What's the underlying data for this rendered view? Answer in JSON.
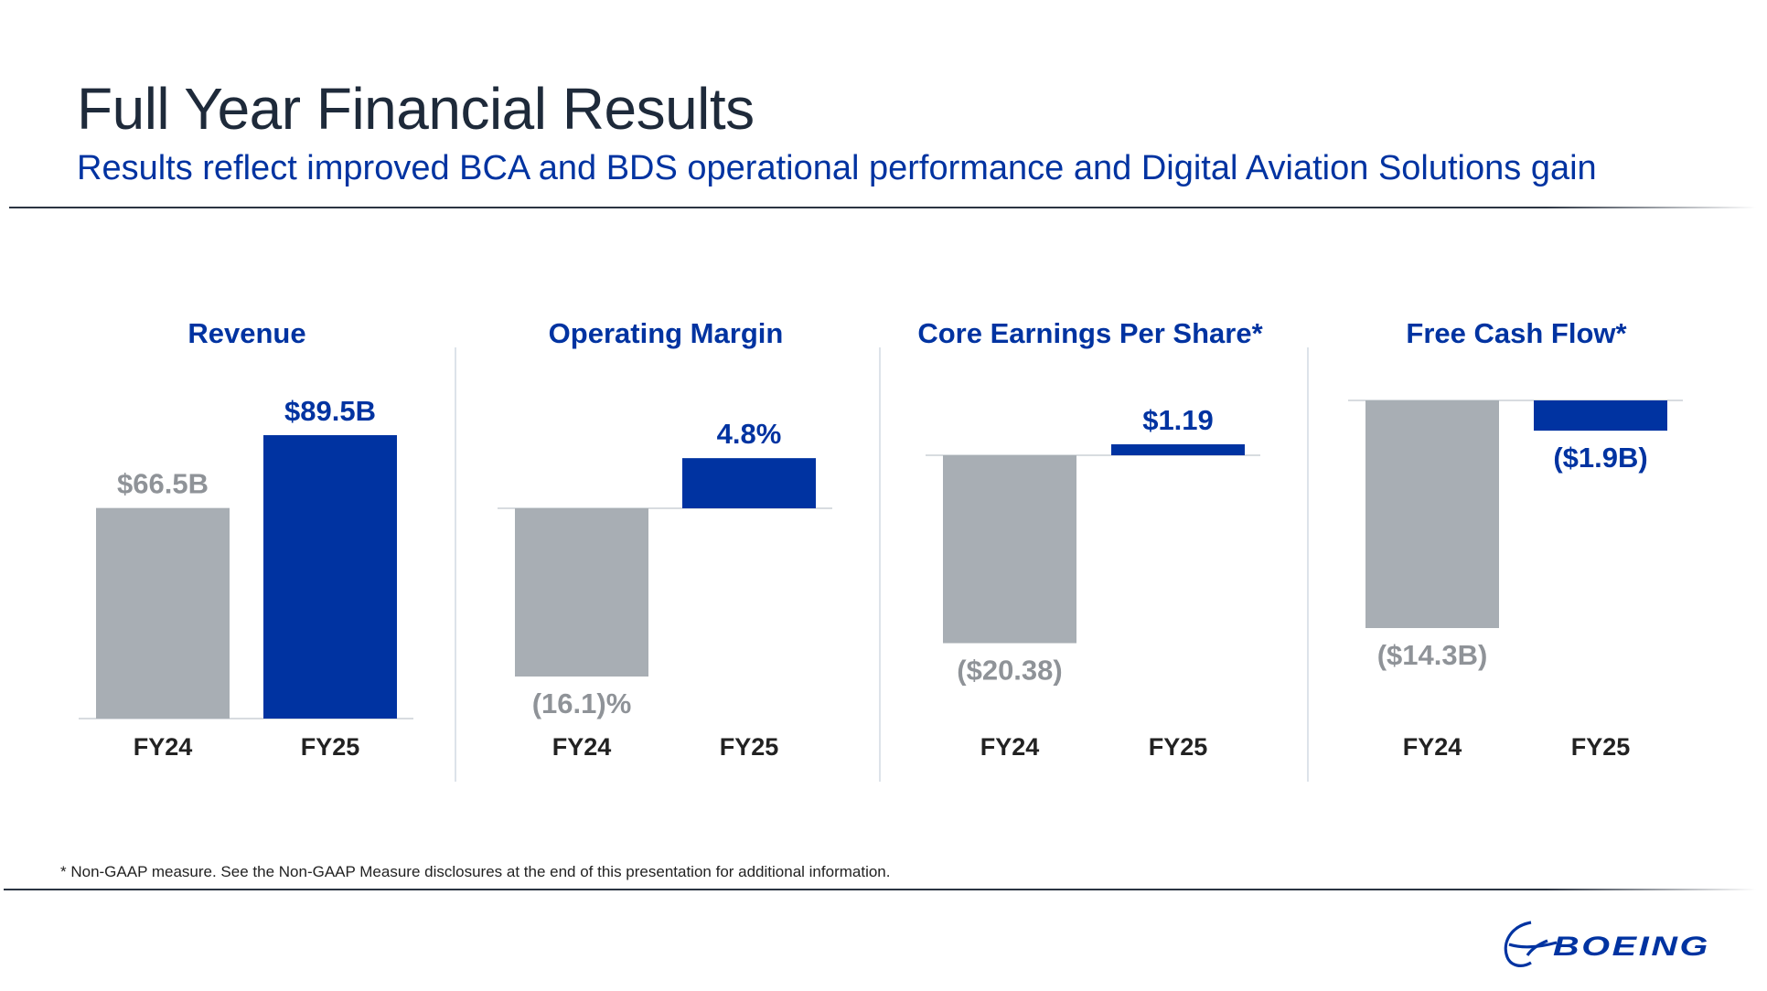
{
  "page": {
    "title": "Full Year Financial Results",
    "subtitle": "Results reflect improved BCA and BDS operational performance and Digital Aviation Solutions gain",
    "footnote": "* Non-GAAP measure. See the Non-GAAP Measure disclosures at the end of this presentation for additional information.",
    "logo_text": "BOEING"
  },
  "colors": {
    "fy24": "#a8aeb4",
    "fy25": "#0033a1",
    "label_fy24": "#8f9398",
    "label_fy25": "#0033a1",
    "title": "#0033a1",
    "axis_label": "#222222"
  },
  "chart_data": [
    {
      "type": "bar",
      "title": "Revenue",
      "categories": [
        "FY24",
        "FY25"
      ],
      "values": [
        66.5,
        89.5
      ],
      "value_labels": [
        "$66.5B",
        "$89.5B"
      ],
      "unit": "$B"
    },
    {
      "type": "bar",
      "title": "Operating Margin",
      "categories": [
        "FY24",
        "FY25"
      ],
      "values": [
        -16.1,
        4.8
      ],
      "value_labels": [
        "(16.1)%",
        "4.8%"
      ],
      "unit": "%"
    },
    {
      "type": "bar",
      "title": "Core Earnings Per Share*",
      "categories": [
        "FY24",
        "FY25"
      ],
      "values": [
        -20.38,
        1.19
      ],
      "value_labels": [
        "($20.38)",
        "$1.19"
      ],
      "unit": "$"
    },
    {
      "type": "bar",
      "title": "Free Cash Flow*",
      "categories": [
        "FY24",
        "FY25"
      ],
      "values": [
        -14.3,
        -1.9
      ],
      "value_labels": [
        "($14.3B)",
        "($1.9B)"
      ],
      "unit": "$B"
    }
  ]
}
